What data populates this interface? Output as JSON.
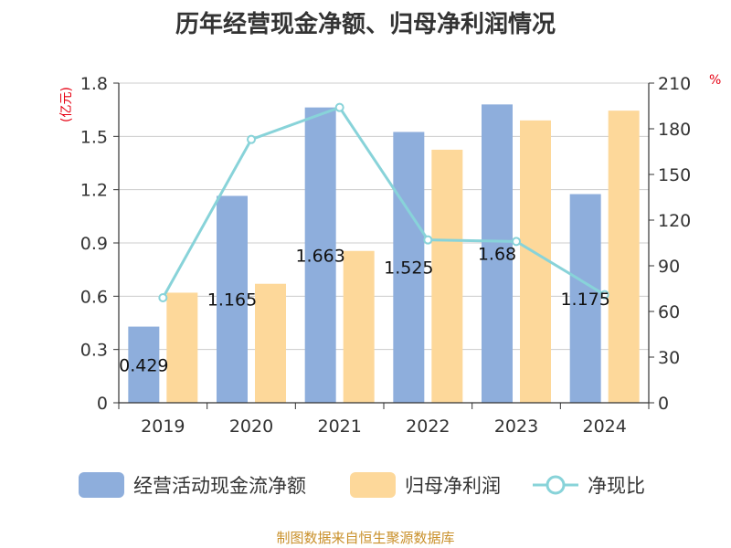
{
  "title": "历年经营现金净额、归母净利润情况",
  "unit_left": "(亿元)",
  "unit_right": "%",
  "source": "制图数据来自恒生聚源数据库",
  "colors": {
    "cash": "#8eaedc",
    "profit": "#fdd89a",
    "ratio": "#88d3d9"
  },
  "chart_data": {
    "type": "bar",
    "categories": [
      "2019",
      "2020",
      "2021",
      "2022",
      "2023",
      "2024"
    ],
    "series": [
      {
        "name": "经营活动现金流净额",
        "axis": "left",
        "type": "bar",
        "values": [
          0.429,
          1.165,
          1.663,
          1.525,
          1.68,
          1.175
        ],
        "labels": [
          "0.429",
          "1.165",
          "1.663",
          "1.525",
          "1.68",
          "1.175"
        ]
      },
      {
        "name": "归母净利润",
        "axis": "left",
        "type": "bar",
        "values": [
          0.62,
          0.67,
          0.855,
          1.425,
          1.59,
          1.645
        ]
      },
      {
        "name": "净现比",
        "axis": "right",
        "type": "line",
        "values": [
          69,
          173,
          194,
          107,
          106,
          71
        ]
      }
    ],
    "y_left": {
      "min": 0,
      "max": 1.8,
      "ticks": [
        "0",
        "0.3",
        "0.6",
        "0.9",
        "1.2",
        "1.5",
        "1.8"
      ]
    },
    "y_right": {
      "min": 0,
      "max": 210,
      "ticks": [
        "0",
        "30",
        "60",
        "90",
        "120",
        "150",
        "180",
        "210"
      ]
    },
    "grid": true,
    "legend_position": "bottom"
  }
}
